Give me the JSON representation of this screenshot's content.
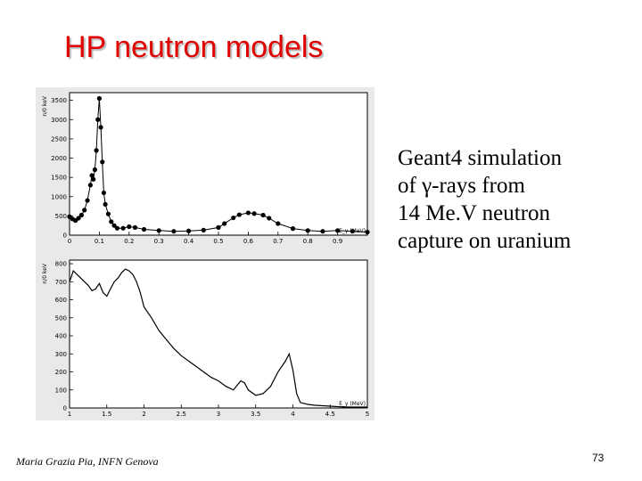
{
  "slide": {
    "title": "HP neutron models",
    "caption_lines": [
      "Geant4 simulation",
      "of γ-rays from",
      "14 Me.V neutron",
      "capture on uranium"
    ],
    "footer": "Maria Grazia Pia, INFN Genova",
    "page_number": "73"
  },
  "chart_data": [
    {
      "type": "scatter",
      "ylabel": "n/0 keV",
      "xlabel": "E_γ (MeV)",
      "xlim": [
        0,
        1.0
      ],
      "ylim": [
        0,
        3700
      ],
      "x_ticks": [
        "0",
        "0.1",
        "0.2",
        "0.3",
        "0.4",
        "0.5",
        "0.6",
        "0.7",
        "0.8",
        "0.9"
      ],
      "y_ticks": [
        "0",
        "500",
        "1000",
        "1500",
        "2000",
        "2500",
        "3000",
        "3500"
      ],
      "color": "#000000",
      "x": [
        0.0,
        0.01,
        0.02,
        0.03,
        0.04,
        0.05,
        0.06,
        0.07,
        0.075,
        0.08,
        0.085,
        0.09,
        0.095,
        0.1,
        0.105,
        0.11,
        0.115,
        0.12,
        0.13,
        0.14,
        0.15,
        0.16,
        0.18,
        0.2,
        0.22,
        0.25,
        0.3,
        0.35,
        0.4,
        0.45,
        0.5,
        0.52,
        0.55,
        0.57,
        0.6,
        0.62,
        0.65,
        0.67,
        0.7,
        0.75,
        0.8,
        0.85,
        0.9,
        0.95,
        1.0
      ],
      "y": [
        480,
        420,
        380,
        440,
        520,
        650,
        900,
        1300,
        1550,
        1450,
        1700,
        2200,
        3000,
        3550,
        2800,
        1900,
        1100,
        800,
        550,
        350,
        250,
        180,
        180,
        220,
        200,
        150,
        120,
        100,
        110,
        130,
        200,
        300,
        450,
        530,
        580,
        560,
        520,
        440,
        300,
        170,
        120,
        100,
        120,
        100,
        80
      ]
    },
    {
      "type": "line",
      "ylabel": "n/0 keV",
      "xlabel": "E_γ (MeV)",
      "xlim": [
        1.0,
        5.0
      ],
      "ylim": [
        0,
        820
      ],
      "x_ticks": [
        "1",
        "1.5",
        "2",
        "2.5",
        "3",
        "3.5",
        "4",
        "4.5",
        "5"
      ],
      "y_ticks": [
        "0",
        "100",
        "200",
        "300",
        "400",
        "500",
        "600",
        "700",
        "800"
      ],
      "color": "#000000",
      "x": [
        1.0,
        1.05,
        1.1,
        1.15,
        1.2,
        1.25,
        1.3,
        1.35,
        1.4,
        1.45,
        1.5,
        1.55,
        1.6,
        1.65,
        1.7,
        1.75,
        1.8,
        1.85,
        1.9,
        1.95,
        2.0,
        2.1,
        2.2,
        2.3,
        2.4,
        2.5,
        2.6,
        2.7,
        2.8,
        2.9,
        3.0,
        3.1,
        3.2,
        3.3,
        3.35,
        3.4,
        3.5,
        3.6,
        3.7,
        3.8,
        3.9,
        3.95,
        4.0,
        4.05,
        4.1,
        4.2,
        4.3,
        4.5,
        4.7,
        5.0
      ],
      "y": [
        700,
        760,
        740,
        720,
        700,
        680,
        650,
        660,
        690,
        640,
        620,
        660,
        700,
        720,
        750,
        770,
        760,
        740,
        700,
        640,
        560,
        500,
        430,
        380,
        330,
        290,
        260,
        230,
        200,
        170,
        150,
        120,
        100,
        150,
        140,
        100,
        70,
        80,
        120,
        200,
        260,
        300,
        210,
        80,
        30,
        20,
        15,
        10,
        5,
        5
      ]
    }
  ]
}
